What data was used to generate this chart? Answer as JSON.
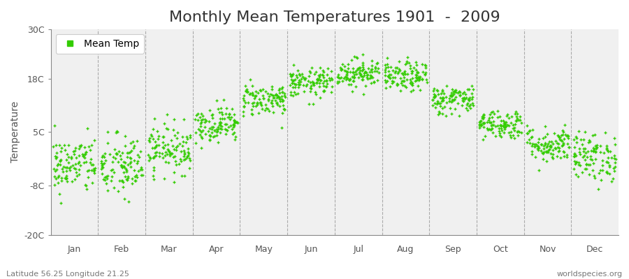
{
  "title": "Monthly Mean Temperatures 1901  -  2009",
  "ylabel": "Temperature",
  "xlabel_labels": [
    "Jan",
    "Feb",
    "Mar",
    "Apr",
    "May",
    "Jun",
    "Jul",
    "Aug",
    "Sep",
    "Oct",
    "Nov",
    "Dec"
  ],
  "yticks": [
    -20,
    -8,
    5,
    18,
    30
  ],
  "ytick_labels": [
    "-20C",
    "-8C",
    "5C",
    "18C",
    "30C"
  ],
  "ylim": [
    -20,
    30
  ],
  "dot_color": "#33cc00",
  "background_color": "#f0f0f0",
  "figure_background": "#ffffff",
  "legend_label": "Mean Temp",
  "subtitle_left": "Latitude 56.25 Longitude 21.25",
  "subtitle_right": "worldspecies.org",
  "monthly_means": [
    -3.0,
    -3.5,
    1.0,
    7.0,
    13.0,
    17.0,
    19.5,
    18.5,
    13.0,
    7.0,
    2.0,
    -1.0
  ],
  "monthly_stds": [
    3.5,
    4.0,
    3.0,
    2.2,
    2.0,
    1.8,
    1.8,
    1.8,
    1.8,
    1.8,
    2.2,
    3.0
  ],
  "n_years": 109,
  "title_fontsize": 16,
  "axis_fontsize": 10,
  "tick_fontsize": 9,
  "dot_size": 9,
  "dpi": 100,
  "figsize": [
    9.0,
    4.0
  ]
}
